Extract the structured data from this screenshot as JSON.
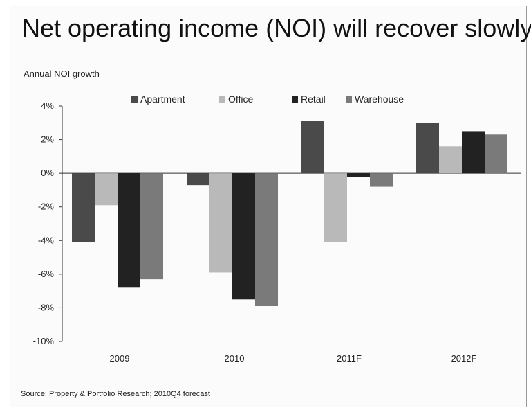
{
  "title": "Net operating income (NOI) will recover slowly",
  "source": "Source:  Property & Portfolio Research; 2010Q4 forecast",
  "chart_data": {
    "type": "bar",
    "title": "Net operating income (NOI) will recover slowly",
    "ylabel": "Annual NOI growth",
    "xlabel": "",
    "categories": [
      "2009",
      "2010",
      "2011F",
      "2012F"
    ],
    "series": [
      {
        "name": "Apartment",
        "color": "#4a4a4a",
        "values": [
          -4.1,
          -0.7,
          3.1,
          3.0
        ]
      },
      {
        "name": "Office",
        "color": "#b9b9b9",
        "values": [
          -1.9,
          -5.9,
          -4.1,
          1.6
        ]
      },
      {
        "name": "Retail",
        "color": "#222222",
        "values": [
          -6.8,
          -7.5,
          -0.2,
          2.5
        ]
      },
      {
        "name": "Warehouse",
        "color": "#7a7a7a",
        "values": [
          -6.3,
          -7.9,
          -0.8,
          2.3
        ]
      }
    ],
    "ylim": [
      -10,
      4
    ],
    "yticks": [
      4,
      2,
      0,
      -2,
      -4,
      -6,
      -8,
      -10
    ],
    "ytick_labels": [
      "4%",
      "2%",
      "0%",
      "-2%",
      "-4%",
      "-6%",
      "-8%",
      "-10%"
    ],
    "legend": "top-center",
    "grid": false
  }
}
